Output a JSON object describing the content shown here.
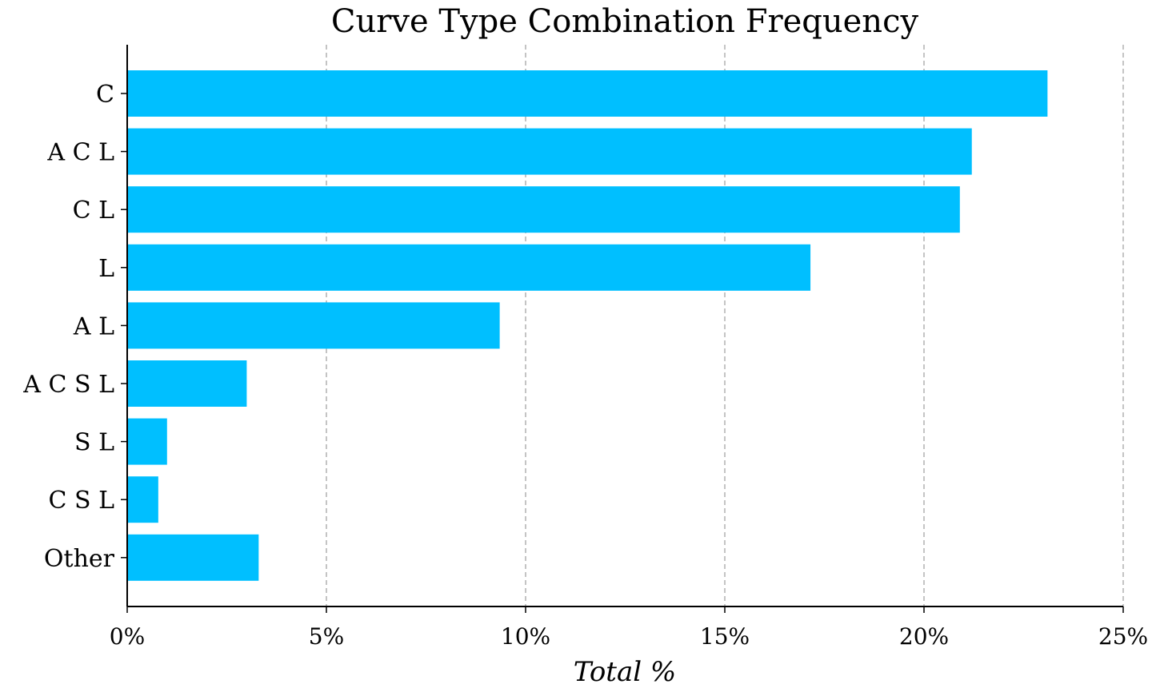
{
  "chart_data": {
    "type": "bar",
    "orientation": "horizontal",
    "title": "Curve Type Combination Frequency",
    "xlabel": "Total %",
    "ylabel": "",
    "categories": [
      "C",
      "A C L",
      "C L",
      "L",
      "A L",
      "A C S L",
      "S L",
      "C S L",
      "Other"
    ],
    "values": [
      23.1,
      21.2,
      20.9,
      17.15,
      9.35,
      3.0,
      1.0,
      0.78,
      3.3
    ],
    "xlim": [
      0,
      25
    ],
    "xticks": [
      0,
      5,
      10,
      15,
      20,
      25
    ],
    "xtick_labels": [
      "0%",
      "5%",
      "10%",
      "15%",
      "20%",
      "25%"
    ],
    "grid": "vertical dashed",
    "bar_color": "#00bfff"
  }
}
